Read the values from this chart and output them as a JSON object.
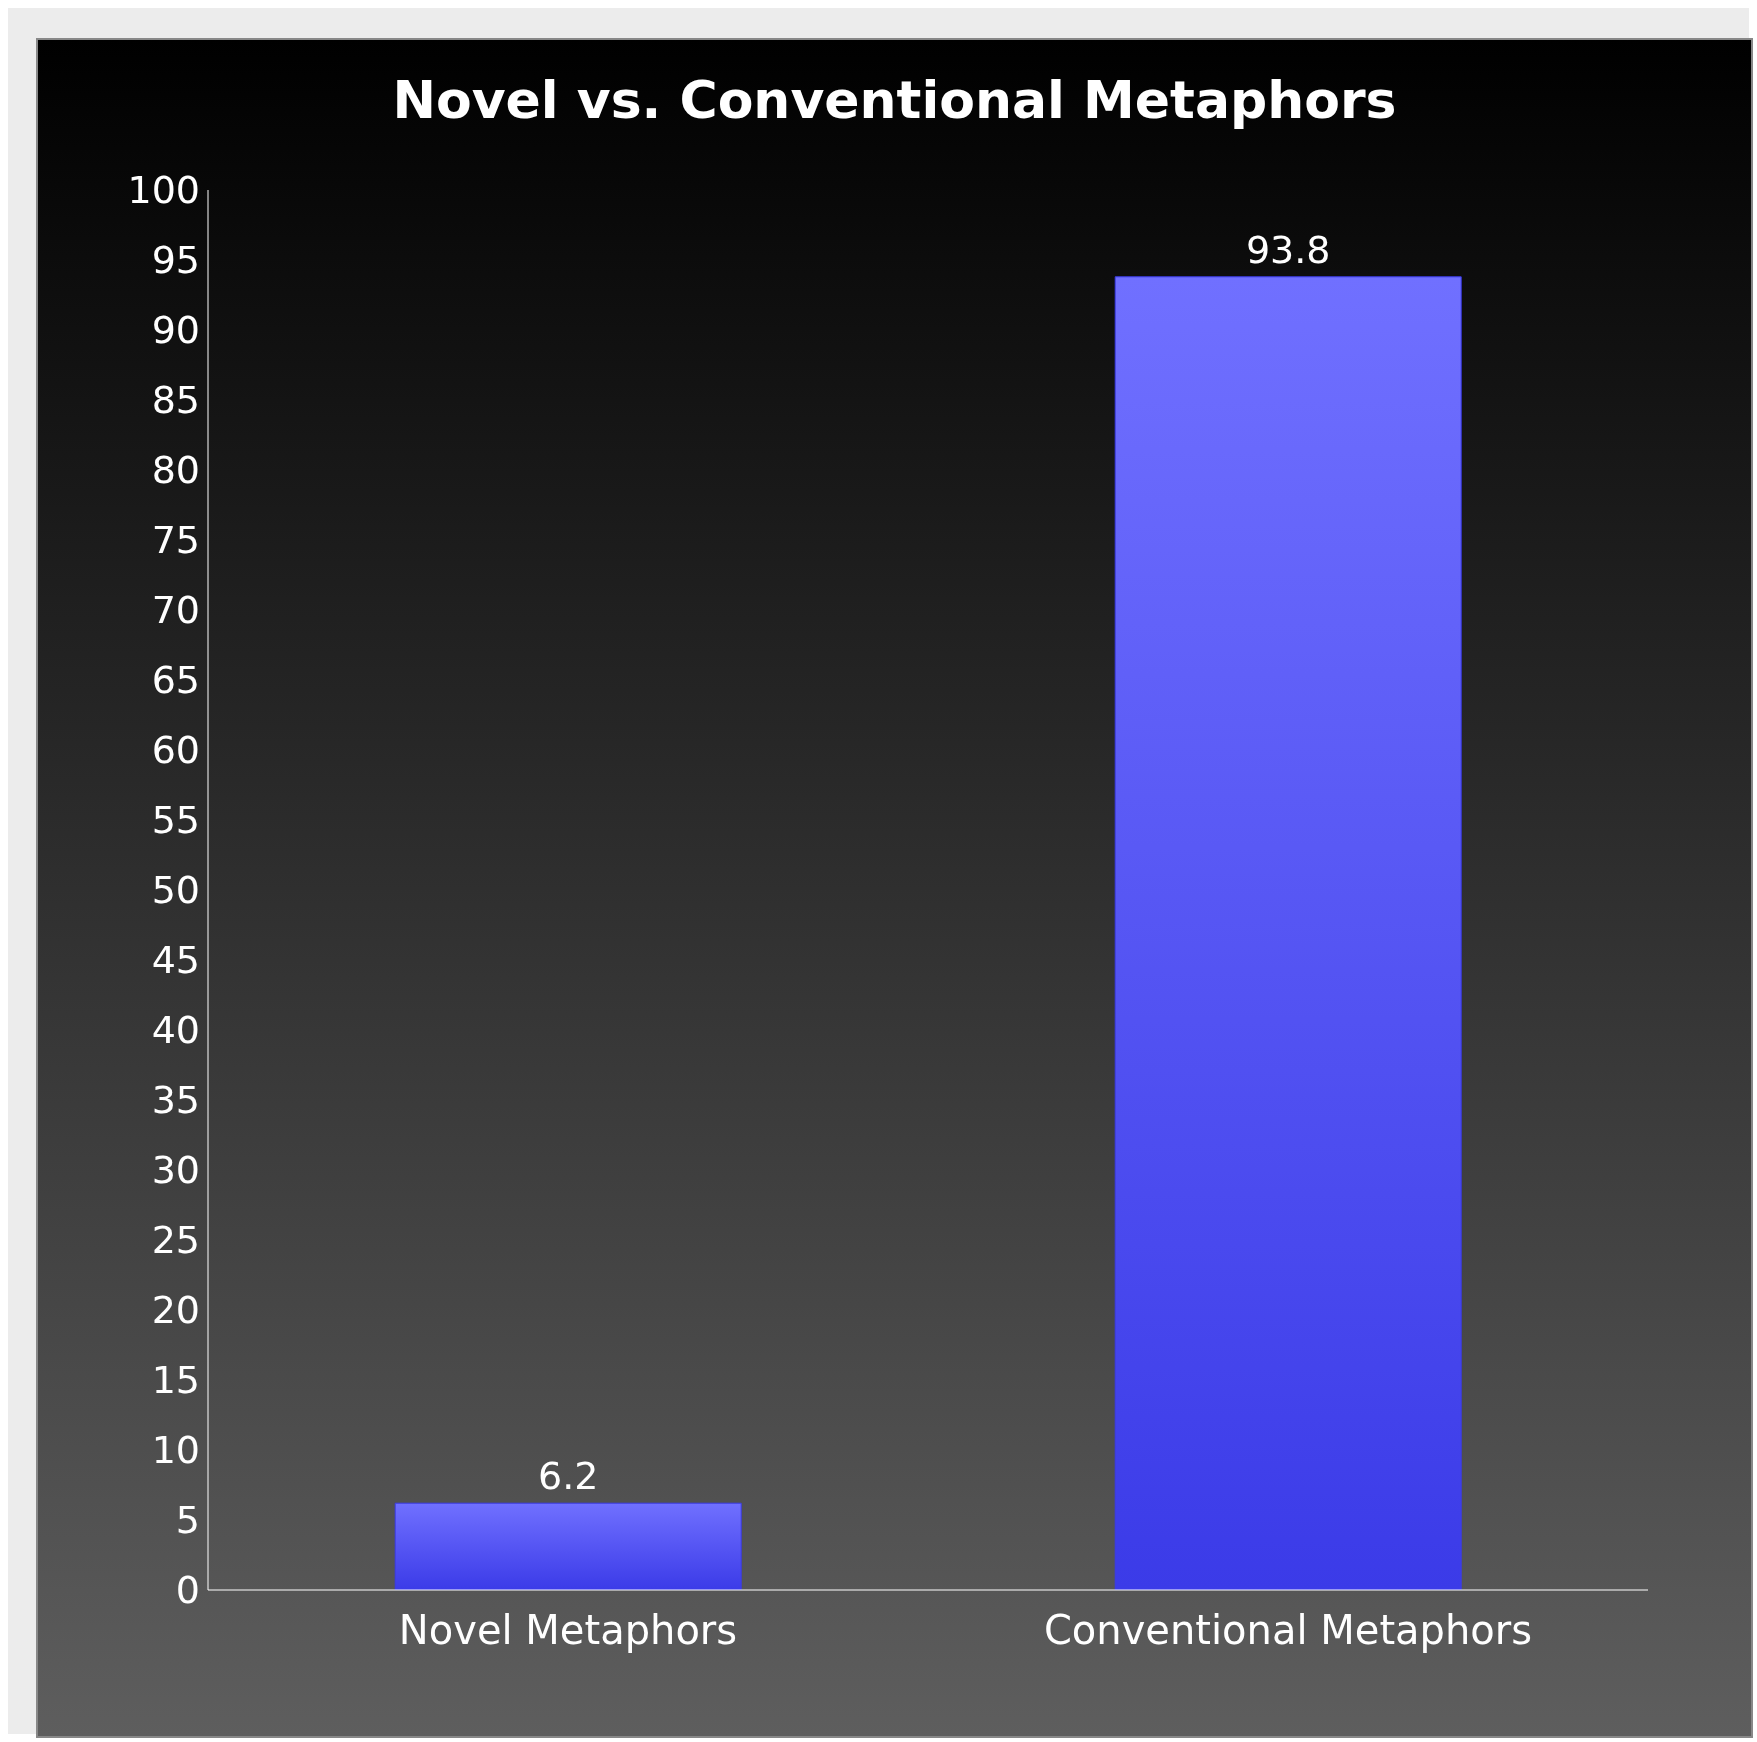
{
  "chart_data": {
    "type": "bar",
    "title": "Novel vs. Conventional Metaphors",
    "categories": [
      "Novel Metaphors",
      "Conventional Metaphors"
    ],
    "values": [
      6.2,
      93.8
    ],
    "color": "#3b3be8",
    "ylim": [
      0,
      100
    ],
    "yticks": [
      0,
      5,
      10,
      15,
      20,
      25,
      30,
      35,
      40,
      45,
      50,
      55,
      60,
      65,
      70,
      75,
      80,
      85,
      90,
      95,
      100
    ],
    "data_labels": true
  }
}
